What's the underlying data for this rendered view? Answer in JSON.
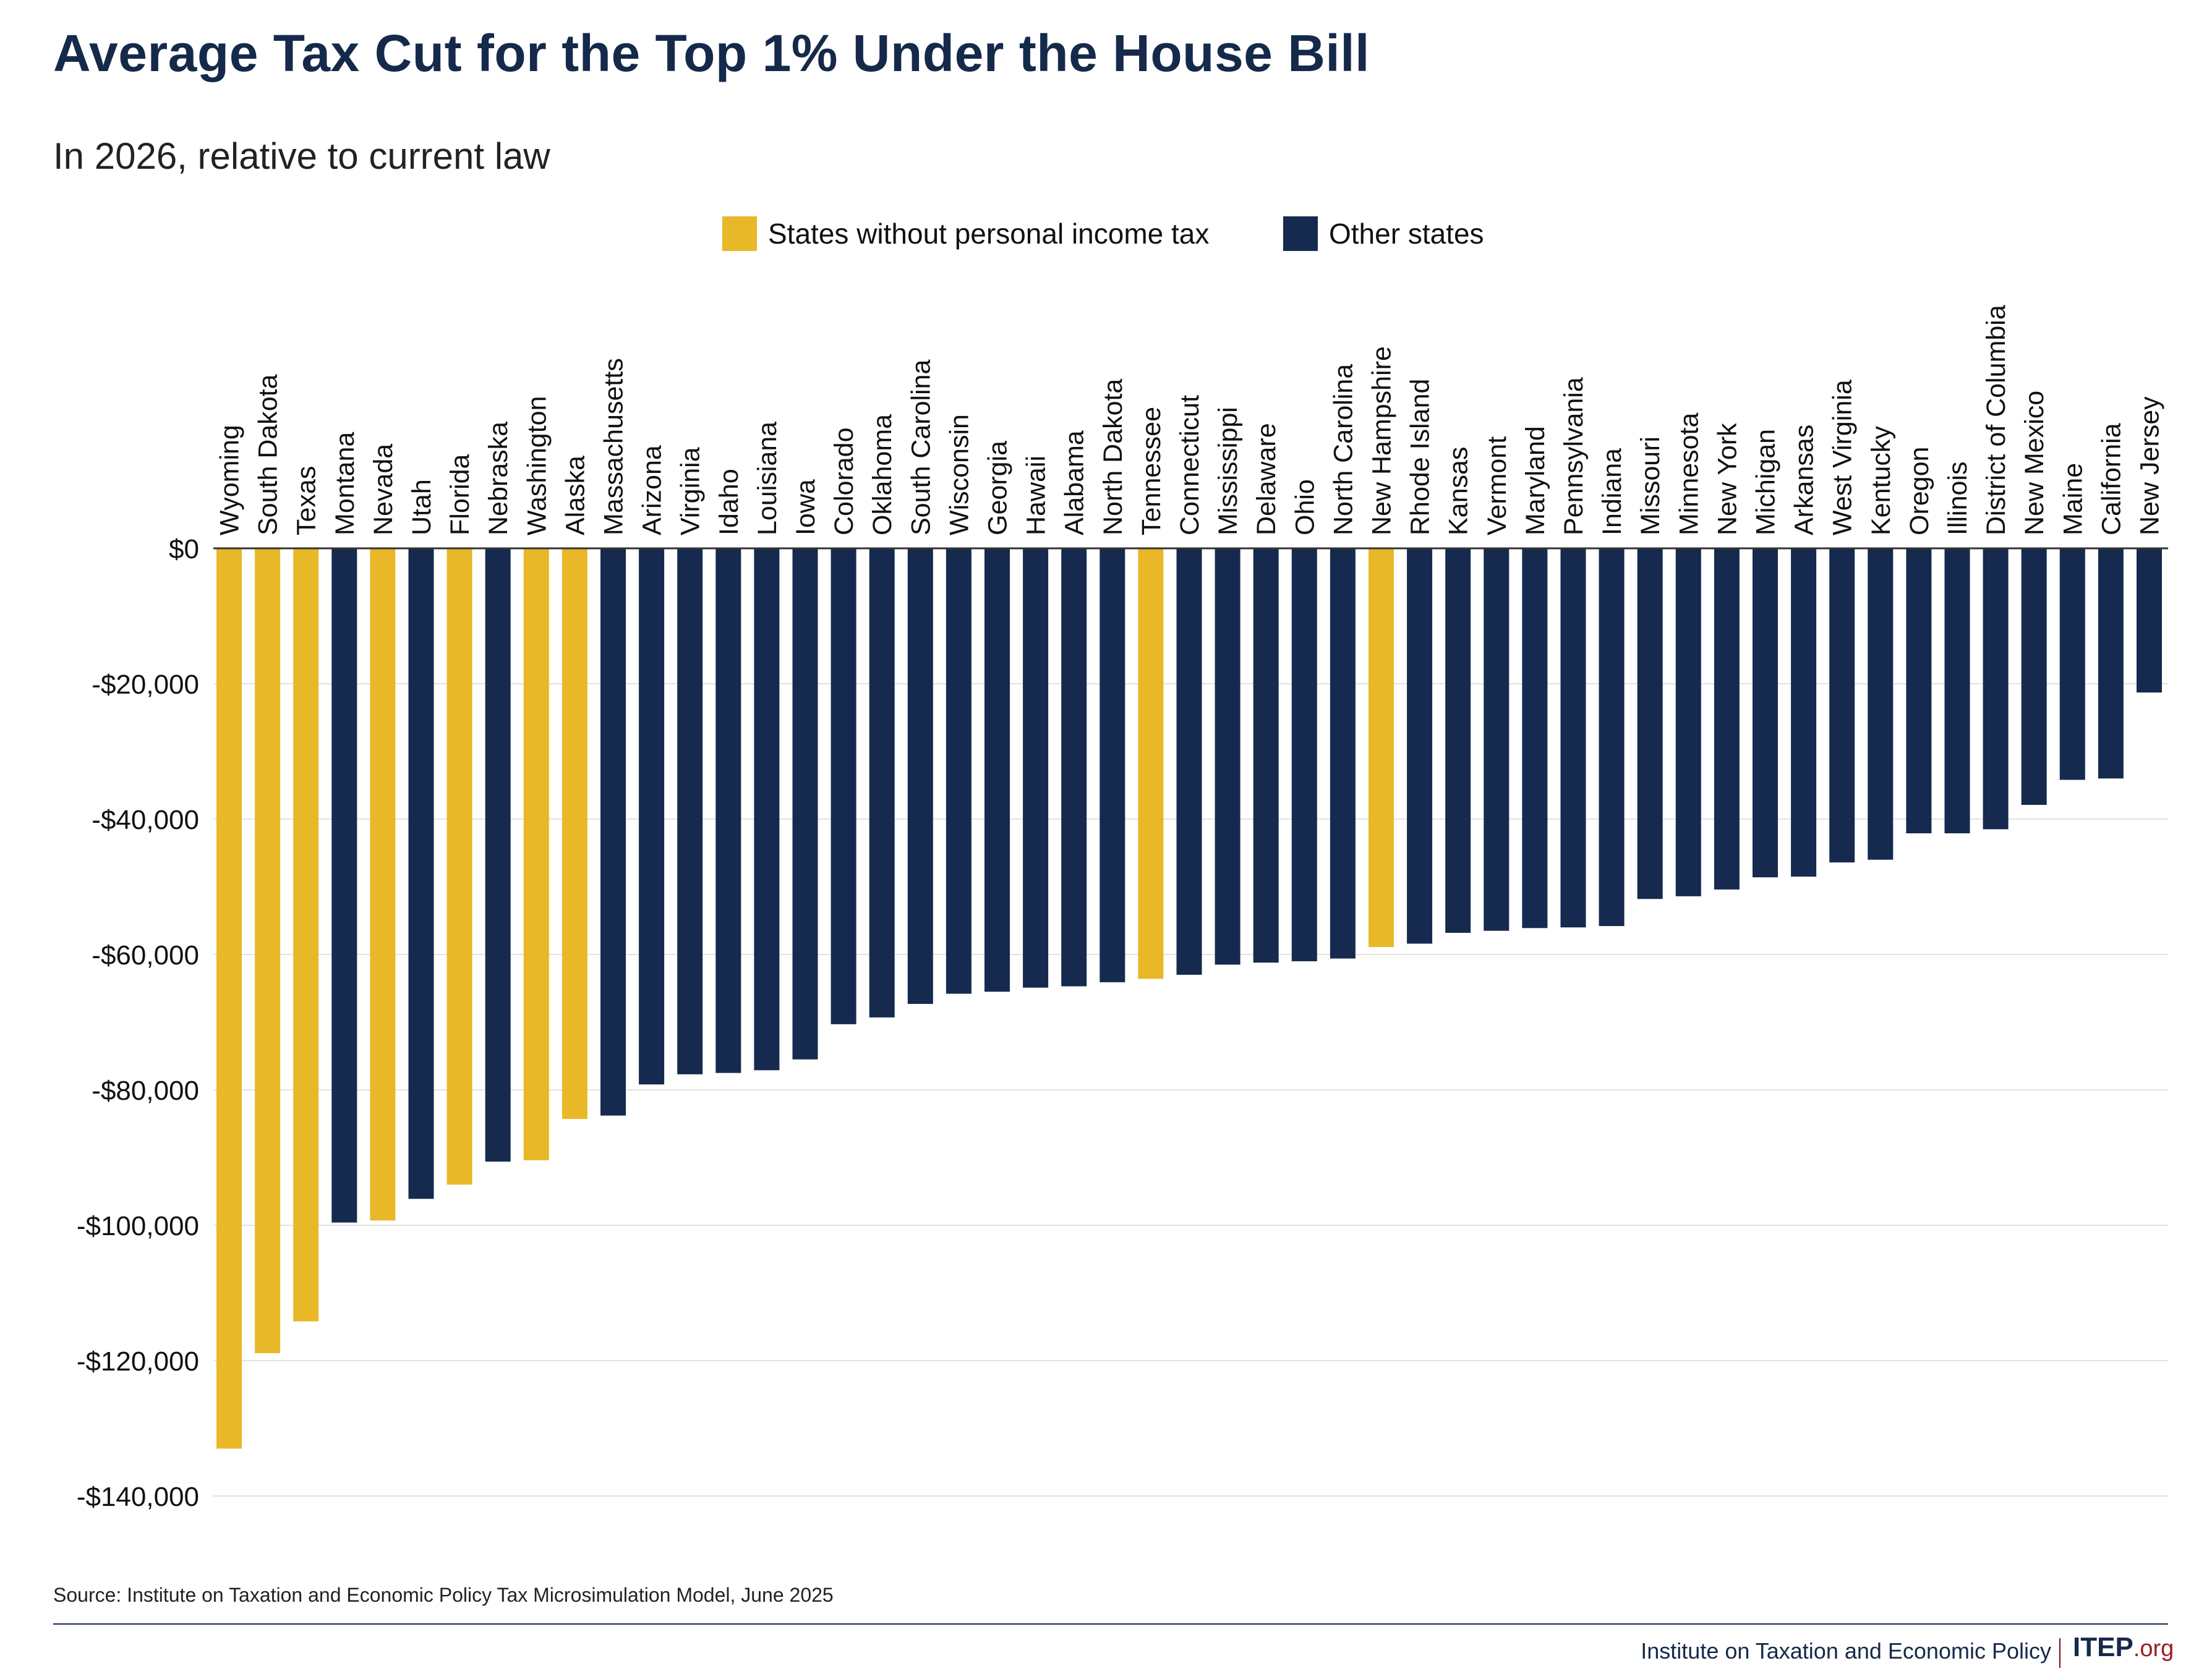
{
  "colors": {
    "no_income_tax": "#e8b828",
    "other": "#152a4e",
    "grid": "#e2e2e2",
    "axis": "#333333"
  },
  "footer": {
    "org_name": "Institute on Taxation and Economic Policy",
    "logo_main": "ITEP",
    "logo_suffix": ".org"
  },
  "chart_data": {
    "type": "bar",
    "title": "Average Tax Cut for the Top 1% Under the House Bill",
    "subtitle": "In 2026, relative to current law",
    "source": "Source: Institute on Taxation and Economic Policy Tax Microsimulation Model, June 2025",
    "legend": [
      {
        "name": "States without personal income tax",
        "color": "#e8b828"
      },
      {
        "name": "Other states",
        "color": "#152a4e"
      }
    ],
    "legend_position": "top-center",
    "ylim": [
      -140000,
      0
    ],
    "yticks": [
      0,
      -20000,
      -40000,
      -60000,
      -80000,
      -100000,
      -120000,
      -140000
    ],
    "ytick_labels": [
      "$0",
      "-$20,000",
      "-$40,000",
      "-$60,000",
      "-$80,000",
      "-$100,000",
      "-$120,000",
      "-$140,000"
    ],
    "grid": true,
    "categories": [
      "Wyoming",
      "South Dakota",
      "Texas",
      "Montana",
      "Nevada",
      "Utah",
      "Florida",
      "Nebraska",
      "Washington",
      "Alaska",
      "Massachusetts",
      "Arizona",
      "Virginia",
      "Idaho",
      "Louisiana",
      "Iowa",
      "Colorado",
      "Oklahoma",
      "South Carolina",
      "Wisconsin",
      "Georgia",
      "Hawaii",
      "Alabama",
      "North Dakota",
      "Tennessee",
      "Connecticut",
      "Mississippi",
      "Delaware",
      "Ohio",
      "North Carolina",
      "New Hampshire",
      "Rhode Island",
      "Kansas",
      "Vermont",
      "Maryland",
      "Pennsylvania",
      "Indiana",
      "Missouri",
      "Minnesota",
      "New York",
      "Michigan",
      "Arkansas",
      "West Virginia",
      "Kentucky",
      "Oregon",
      "Illinois",
      "District of Columbia",
      "New Mexico",
      "Maine",
      "California",
      "New Jersey"
    ],
    "values": [
      -133000,
      -118900,
      -114200,
      -99600,
      -99300,
      -96100,
      -94000,
      -90600,
      -90400,
      -84300,
      -83800,
      -79200,
      -77700,
      -77500,
      -77100,
      -75500,
      -70300,
      -69300,
      -67300,
      -65800,
      -65500,
      -64900,
      -64700,
      -64100,
      -63600,
      -63000,
      -61500,
      -61200,
      -61000,
      -60600,
      -58900,
      -58400,
      -56800,
      -56500,
      -56100,
      -56000,
      -55800,
      -51800,
      -51400,
      -50400,
      -48600,
      -48500,
      -46400,
      -46000,
      -42100,
      -42100,
      -41500,
      -37900,
      -34200,
      -34000,
      -21300
    ],
    "no_income_tax": [
      true,
      true,
      true,
      false,
      true,
      false,
      true,
      false,
      true,
      true,
      false,
      false,
      false,
      false,
      false,
      false,
      false,
      false,
      false,
      false,
      false,
      false,
      false,
      false,
      true,
      false,
      false,
      false,
      false,
      false,
      true,
      false,
      false,
      false,
      false,
      false,
      false,
      false,
      false,
      false,
      false,
      false,
      false,
      false,
      false,
      false,
      false,
      false,
      false,
      false,
      false
    ]
  }
}
